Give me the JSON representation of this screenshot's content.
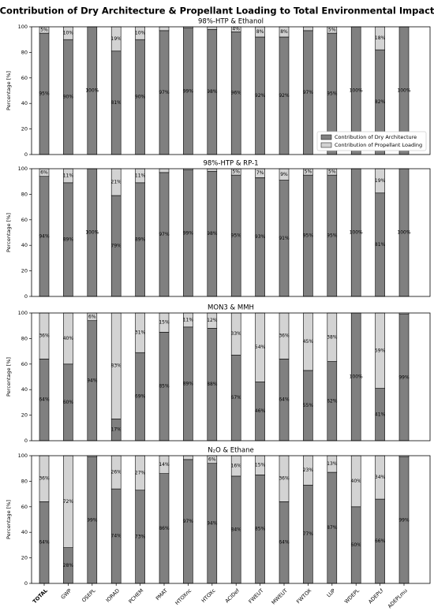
{
  "title": "Contribution of Dry Architecture & Propellant Loading to Total Environmental Impact",
  "chart_data": [
    {
      "type": "bar",
      "stacked": true,
      "title": "98%-HTP & Ethanol",
      "ylabel": "Percentage [%]",
      "ylim": [
        0,
        100
      ],
      "yticks": [
        0,
        20,
        40,
        60,
        80,
        100
      ],
      "legend": "lower right",
      "series": [
        {
          "name": "Contribution of Dry Architecture",
          "color": "#808080",
          "values": [
            95,
            90,
            100,
            81,
            90,
            97,
            99,
            98,
            96,
            92,
            92,
            97,
            95,
            100,
            82,
            100
          ],
          "value_labels": [
            "95%",
            "90%",
            "100%",
            "81%",
            "90%",
            "97%",
            "99%",
            "98%",
            "96%",
            "92%",
            "92%",
            "97%",
            "95%",
            "100%",
            "82%",
            "100%"
          ]
        },
        {
          "name": "Contribution of Propellant Loading",
          "color": "#d3d3d3",
          "values": [
            5,
            10,
            0,
            19,
            10,
            3,
            1,
            2,
            4,
            8,
            8,
            3,
            5,
            0,
            18,
            0
          ],
          "value_labels": [
            "5%",
            "10%",
            null,
            "19%",
            "10%",
            null,
            null,
            null,
            "4%",
            "8%",
            "8%",
            null,
            "5%",
            null,
            "18%",
            null
          ]
        }
      ]
    },
    {
      "type": "bar",
      "stacked": true,
      "title": "98%-HTP & RP-1",
      "ylabel": "Percentage [%]",
      "ylim": [
        0,
        100
      ],
      "yticks": [
        0,
        20,
        40,
        60,
        80,
        100
      ],
      "series": [
        {
          "color": "#808080",
          "values": [
            94,
            89,
            100,
            79,
            89,
            97,
            99,
            98,
            95,
            93,
            91,
            95,
            95,
            100,
            81,
            100
          ],
          "value_labels": [
            "94%",
            "89%",
            "100%",
            "79%",
            "89%",
            "97%",
            "99%",
            "98%",
            "95%",
            "93%",
            "91%",
            "95%",
            "95%",
            "100%",
            "81%",
            "100%"
          ]
        },
        {
          "color": "#d3d3d3",
          "values": [
            6,
            11,
            0,
            21,
            11,
            3,
            1,
            2,
            5,
            7,
            9,
            5,
            5,
            0,
            19,
            0
          ],
          "value_labels": [
            "6%",
            "11%",
            null,
            "21%",
            "11%",
            null,
            null,
            null,
            "5%",
            "7%",
            "9%",
            "5%",
            "5%",
            null,
            "19%",
            null
          ]
        }
      ]
    },
    {
      "type": "bar",
      "stacked": true,
      "title": "MON3 & MMH",
      "ylabel": "Percentage [%]",
      "ylim": [
        0,
        100
      ],
      "yticks": [
        0,
        20,
        40,
        60,
        80,
        100
      ],
      "series": [
        {
          "color": "#808080",
          "values": [
            64,
            60,
            94,
            17,
            69,
            85,
            89,
            88,
            67,
            46,
            64,
            55,
            62,
            100,
            41,
            99
          ],
          "value_labels": [
            "64%",
            "60%",
            "94%",
            "17%",
            "69%",
            "85%",
            "89%",
            "88%",
            "67%",
            "46%",
            "64%",
            "55%",
            "62%",
            "100%",
            "41%",
            "99%"
          ]
        },
        {
          "color": "#d3d3d3",
          "values": [
            36,
            40,
            6,
            83,
            31,
            15,
            11,
            12,
            33,
            54,
            36,
            45,
            38,
            0,
            59,
            1
          ],
          "value_labels": [
            "36%",
            "40%",
            "6%",
            "83%",
            "31%",
            "15%",
            "11%",
            "12%",
            "33%",
            "54%",
            "36%",
            "45%",
            "38%",
            null,
            "59%",
            null
          ]
        }
      ]
    },
    {
      "type": "bar",
      "stacked": true,
      "title": "N₂O & Ethane",
      "ylabel": "Percentage [%]",
      "ylim": [
        0,
        100
      ],
      "yticks": [
        0,
        20,
        40,
        60,
        80,
        100
      ],
      "categories": [
        "TOTAL",
        "GWP",
        "OSEPL",
        "IORAD",
        "PCHEM",
        "PMAT",
        "HTOXnc",
        "HTOXc",
        "ACIDef",
        "FWEUT",
        "MWEUT",
        "FWTOX",
        "LUP",
        "WDEPL",
        "ADEPLf",
        "ADEPLmu"
      ],
      "series": [
        {
          "color": "#808080",
          "values": [
            64,
            28,
            99,
            74,
            73,
            86,
            97,
            94,
            84,
            85,
            64,
            77,
            87,
            60,
            66,
            99
          ],
          "value_labels": [
            "64%",
            "28%",
            "99%",
            "74%",
            "73%",
            "86%",
            "97%",
            "94%",
            "84%",
            "85%",
            "64%",
            "77%",
            "87%",
            "60%",
            "66%",
            "99%"
          ]
        },
        {
          "color": "#d3d3d3",
          "values": [
            36,
            72,
            1,
            26,
            27,
            14,
            3,
            6,
            16,
            15,
            36,
            23,
            13,
            40,
            34,
            1
          ],
          "value_labels": [
            "36%",
            "72%",
            null,
            "26%",
            "27%",
            "14%",
            null,
            "6%",
            "16%",
            "15%",
            "36%",
            "23%",
            "13%",
            "40%",
            "34%",
            null
          ]
        }
      ]
    }
  ]
}
